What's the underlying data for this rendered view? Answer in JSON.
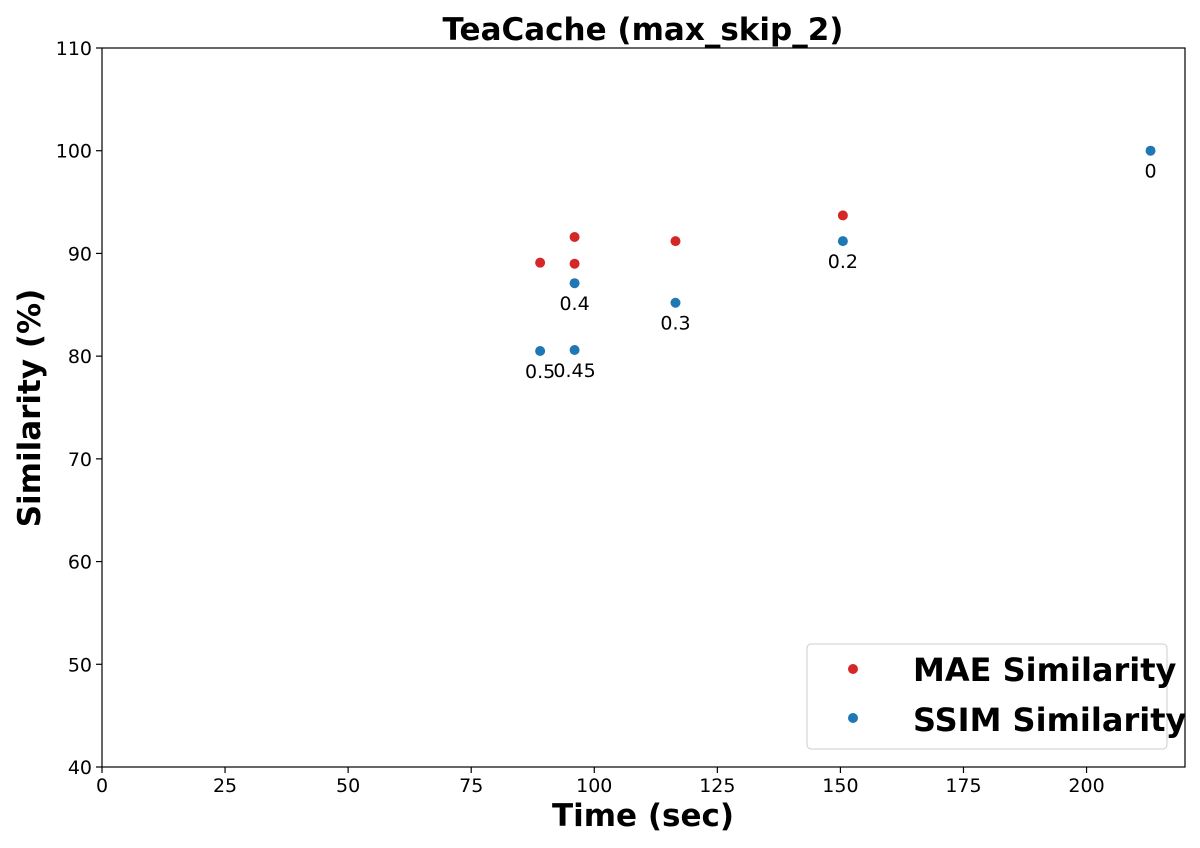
{
  "chart_data": {
    "type": "scatter",
    "title": "TeaCache (max_skip_2)",
    "xlabel": "Time (sec)",
    "ylabel": "Similarity (%)",
    "xlim": [
      0,
      220
    ],
    "ylim": [
      40,
      110
    ],
    "xticks": [
      0,
      25,
      50,
      75,
      100,
      125,
      150,
      175,
      200
    ],
    "yticks": [
      40,
      50,
      60,
      70,
      80,
      90,
      100,
      110
    ],
    "grid": false,
    "legend_position": "bottom-right",
    "series": [
      {
        "name": "MAE Similarity",
        "color": "#d62728",
        "points": [
          {
            "x": 89,
            "y": 89.1
          },
          {
            "x": 96,
            "y": 91.6
          },
          {
            "x": 96,
            "y": 89.0
          },
          {
            "x": 116.5,
            "y": 91.2
          },
          {
            "x": 150.5,
            "y": 93.7
          }
        ]
      },
      {
        "name": "SSIM Similarity",
        "color": "#1f77b4",
        "points": [
          {
            "x": 89,
            "y": 80.5,
            "label": "0.5"
          },
          {
            "x": 96,
            "y": 80.6,
            "label": "0.45"
          },
          {
            "x": 96,
            "y": 87.1,
            "label": "0.4"
          },
          {
            "x": 116.5,
            "y": 85.2,
            "label": "0.3"
          },
          {
            "x": 150.5,
            "y": 91.2,
            "label": "0.2"
          },
          {
            "x": 213,
            "y": 100.0,
            "label": "0"
          }
        ]
      }
    ]
  }
}
